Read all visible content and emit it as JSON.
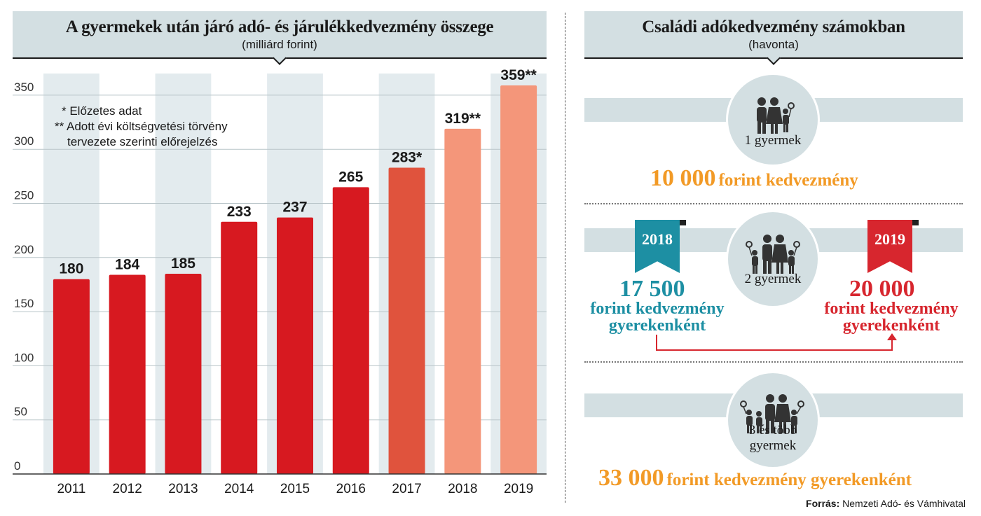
{
  "left": {
    "title": "A gyermekek után járó adó- és járulékkedvezmény összege",
    "subtitle": "(milliárd forint)",
    "note1": "* Előzetes adat",
    "note2a": "** Adott évi költségvetési törvény",
    "note2b": "tervezete szerinti előrejelzés"
  },
  "chart_data": {
    "type": "bar",
    "categories": [
      "2011",
      "2012",
      "2013",
      "2014",
      "2015",
      "2016",
      "2017",
      "2018",
      "2019"
    ],
    "values": [
      180,
      184,
      185,
      233,
      237,
      265,
      283,
      319,
      359
    ],
    "value_labels": [
      "180",
      "184",
      "185",
      "233",
      "237",
      "265",
      "283*",
      "319**",
      "359**"
    ],
    "yticks": [
      0,
      50,
      100,
      150,
      200,
      250,
      300,
      350
    ],
    "ylim": [
      0,
      370
    ],
    "bar_colors": [
      "#d71920",
      "#d71920",
      "#d71920",
      "#d71920",
      "#d71920",
      "#d71920",
      "#e0533d",
      "#f4967a",
      "#f4967a"
    ],
    "band_color": "#e3ebee",
    "grid": true
  },
  "right": {
    "title": "Családi adókedvezmény számokban",
    "subtitle": "(havonta)",
    "one_child_label": "1 gyermek",
    "one_child_amount": "10 000",
    "one_child_text": "forint kedvezmény",
    "two_child_label": "2 gyermek",
    "flag_2018": "2018",
    "flag_2019": "2019",
    "amount_2018": "17 500",
    "amount_2019": "20 000",
    "line1": "forint kedvezmény",
    "line2": "gyerekenként",
    "three_child_label_1": "3 és több",
    "three_child_label_2": "gyermek",
    "three_child_amount": "33 000",
    "three_child_text": "forint kedvezmény gyerekenként",
    "colors": {
      "orange": "#f29a26",
      "teal": "#1d8fa3",
      "red": "#d7262e",
      "band": "#d3dfe2"
    }
  },
  "source_label": "Forrás:",
  "source_text": "Nemzeti Adó- és Vámhivatal"
}
